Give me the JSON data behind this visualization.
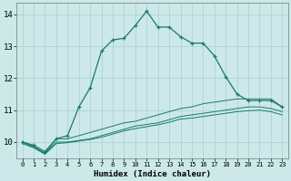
{
  "xlabel": "Humidex (Indice chaleur)",
  "bg_color": "#cce8e8",
  "grid_color": "#aacfcf",
  "line_color": "#1a7a6e",
  "xlim": [
    -0.5,
    23.5
  ],
  "ylim": [
    9.5,
    14.35
  ],
  "yticks": [
    10,
    11,
    12,
    13,
    14
  ],
  "xticks": [
    0,
    1,
    2,
    3,
    4,
    5,
    6,
    7,
    8,
    9,
    10,
    11,
    12,
    13,
    14,
    15,
    16,
    17,
    18,
    19,
    20,
    21,
    22,
    23
  ],
  "line1_x": [
    0,
    1,
    2,
    3,
    4,
    5,
    6,
    7,
    8,
    9,
    10,
    11,
    12,
    13,
    14,
    15,
    16,
    17,
    18,
    19,
    20,
    21,
    22,
    23
  ],
  "line1_y": [
    10.0,
    9.9,
    9.7,
    10.1,
    10.2,
    11.1,
    11.7,
    12.85,
    13.2,
    13.25,
    13.65,
    14.1,
    13.6,
    13.6,
    13.3,
    13.1,
    13.1,
    12.7,
    12.05,
    11.5,
    11.3,
    11.3,
    11.3,
    11.1
  ],
  "line2_x": [
    0,
    1,
    2,
    3,
    4,
    5,
    6,
    7,
    8,
    9,
    10,
    11,
    12,
    13,
    14,
    15,
    16,
    17,
    18,
    19,
    20,
    21,
    22,
    23
  ],
  "line2_y": [
    10.0,
    9.85,
    9.65,
    10.1,
    10.1,
    10.2,
    10.3,
    10.4,
    10.5,
    10.6,
    10.65,
    10.75,
    10.85,
    10.95,
    11.05,
    11.1,
    11.2,
    11.25,
    11.3,
    11.35,
    11.35,
    11.35,
    11.35,
    11.1
  ],
  "line3_x": [
    0,
    1,
    2,
    3,
    4,
    5,
    6,
    7,
    8,
    9,
    10,
    11,
    12,
    13,
    14,
    15,
    16,
    17,
    18,
    19,
    20,
    21,
    22,
    23
  ],
  "line3_y": [
    10.0,
    9.85,
    9.65,
    10.0,
    10.0,
    10.05,
    10.1,
    10.2,
    10.3,
    10.4,
    10.5,
    10.55,
    10.6,
    10.7,
    10.8,
    10.85,
    10.9,
    10.95,
    11.0,
    11.05,
    11.1,
    11.1,
    11.05,
    10.95
  ],
  "line4_x": [
    0,
    1,
    2,
    3,
    4,
    5,
    6,
    7,
    8,
    9,
    10,
    11,
    12,
    13,
    14,
    15,
    16,
    17,
    18,
    19,
    20,
    21,
    22,
    23
  ],
  "line4_y": [
    9.95,
    9.82,
    9.62,
    9.95,
    9.98,
    10.03,
    10.08,
    10.15,
    10.25,
    10.35,
    10.42,
    10.48,
    10.54,
    10.62,
    10.72,
    10.75,
    10.8,
    10.85,
    10.9,
    10.95,
    10.98,
    11.0,
    10.95,
    10.85
  ]
}
